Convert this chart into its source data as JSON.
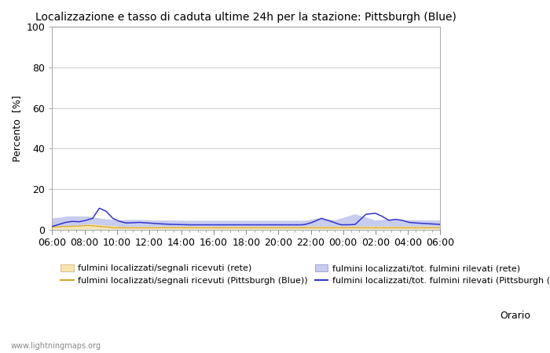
{
  "title": "Localizzazione e tasso di caduta ultime 24h per la stazione: Pittsburgh (Blue)",
  "ylabel": "Percento  [%]",
  "xlabel": "Orario",
  "ylim": [
    0,
    100
  ],
  "yticks": [
    0,
    20,
    40,
    60,
    80,
    100
  ],
  "yticks_minor": [
    10,
    30,
    50,
    70,
    90
  ],
  "xtick_labels": [
    "06:00",
    "08:00",
    "10:00",
    "12:00",
    "14:00",
    "16:00",
    "18:00",
    "20:00",
    "22:00",
    "00:00",
    "02:00",
    "04:00",
    "06:00"
  ],
  "watermark": "www.lightningmaps.org",
  "fill_rete_color": "#f5e6b0",
  "fill_blue_color": "#c8ccee",
  "line_rete_color": "#d4a830",
  "line_blue_color": "#3535cc",
  "legend_label_0": "fulmini localizzati/segnali ricevuti (rete)",
  "legend_label_1": "fulmini localizzati/segnali ricevuti (Pittsburgh (Blue))",
  "legend_label_2": "fulmini localizzati/tot. fulmini rilevati (rete)",
  "legend_label_3": "fulmini localizzati/tot. fulmini rilevati (Pittsburgh (Blue))"
}
